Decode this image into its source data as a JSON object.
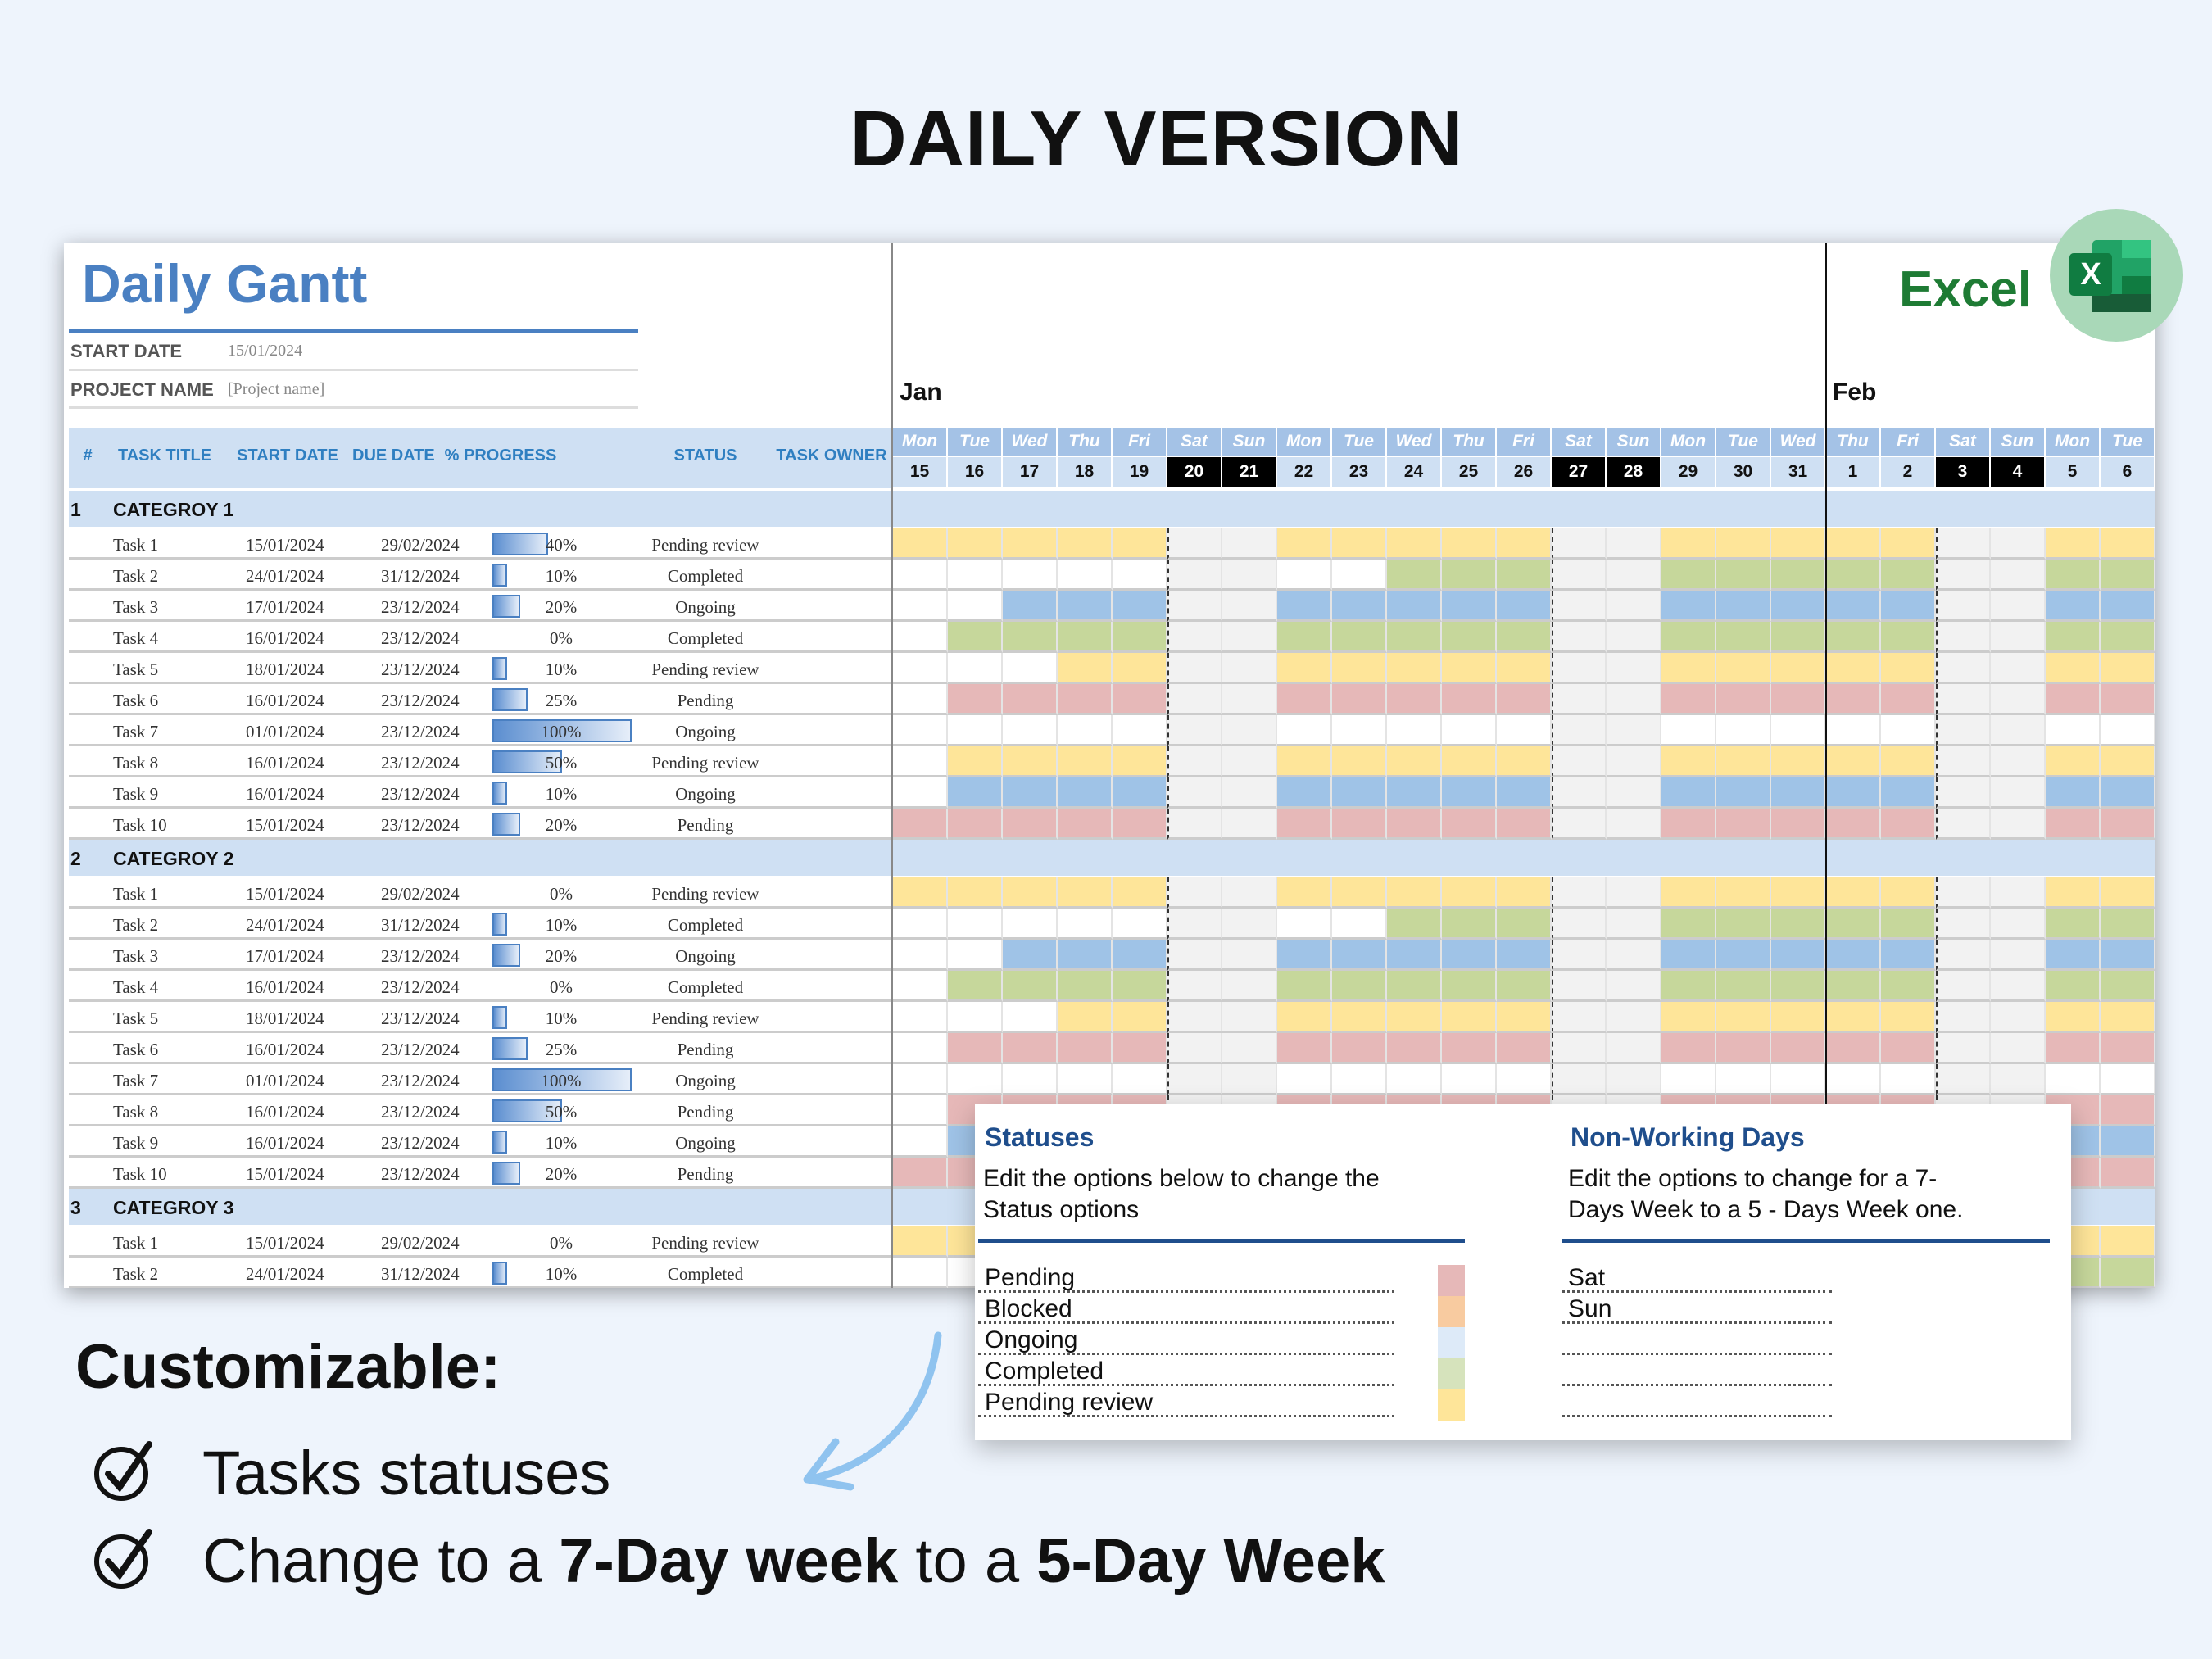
{
  "heading": "DAILY VERSION",
  "excel_label": "Excel",
  "excel_icon_letter": "X",
  "sheet": {
    "title": "Daily Gantt",
    "start_date_label": "START DATE",
    "start_date_value": "15/01/2024",
    "project_name_label": "PROJECT NAME",
    "project_name_value": "[Project name]",
    "columns": [
      "#",
      "TASK TITLE",
      "START DATE",
      "DUE DATE",
      "% PROGRESS",
      "STATUS",
      "TASK OWNER"
    ],
    "months": [
      {
        "label": "Jan",
        "first_day_index": 0
      },
      {
        "label": "Feb",
        "first_day_index": 17
      }
    ],
    "day_names": [
      "Mon",
      "Tue",
      "Wed",
      "Thu",
      "Fri",
      "Sat",
      "Sun",
      "Mon",
      "Tue",
      "Wed",
      "Thu",
      "Fri",
      "Sat",
      "Sun",
      "Mon",
      "Tue",
      "Wed",
      "Thu",
      "Fri",
      "Sat",
      "Sun",
      "Mon",
      "Tue"
    ],
    "day_numbers": [
      "15",
      "16",
      "17",
      "18",
      "19",
      "20",
      "21",
      "22",
      "23",
      "24",
      "25",
      "26",
      "27",
      "28",
      "29",
      "30",
      "31",
      "1",
      "2",
      "3",
      "4",
      "5",
      "6"
    ],
    "categories": [
      {
        "num": "1",
        "name": "CATEGROY 1",
        "tasks": [
          {
            "title": "Task 1",
            "start": "15/01/2024",
            "due": "29/02/2024",
            "progress": 40,
            "progress_label": "40%",
            "status": "Pending review"
          },
          {
            "title": "Task 2",
            "start": "24/01/2024",
            "due": "31/12/2024",
            "progress": 10,
            "progress_label": "10%",
            "status": "Completed"
          },
          {
            "title": "Task 3",
            "start": "17/01/2024",
            "due": "23/12/2024",
            "progress": 20,
            "progress_label": "20%",
            "status": "Ongoing"
          },
          {
            "title": "Task 4",
            "start": "16/01/2024",
            "due": "23/12/2024",
            "progress": 0,
            "progress_label": "0%",
            "status": "Completed"
          },
          {
            "title": "Task 5",
            "start": "18/01/2024",
            "due": "23/12/2024",
            "progress": 10,
            "progress_label": "10%",
            "status": "Pending review"
          },
          {
            "title": "Task 6",
            "start": "16/01/2024",
            "due": "23/12/2024",
            "progress": 25,
            "progress_label": "25%",
            "status": "Pending"
          },
          {
            "title": "Task 7",
            "start": "01/01/2024",
            "due": "23/12/2024",
            "progress": 100,
            "progress_label": "100%",
            "status": "Ongoing"
          },
          {
            "title": "Task 8",
            "start": "16/01/2024",
            "due": "23/12/2024",
            "progress": 50,
            "progress_label": "50%",
            "status": "Pending review"
          },
          {
            "title": "Task 9",
            "start": "16/01/2024",
            "due": "23/12/2024",
            "progress": 10,
            "progress_label": "10%",
            "status": "Ongoing"
          },
          {
            "title": "Task 10",
            "start": "15/01/2024",
            "due": "23/12/2024",
            "progress": 20,
            "progress_label": "20%",
            "status": "Pending"
          }
        ]
      },
      {
        "num": "2",
        "name": "CATEGROY 2",
        "tasks": [
          {
            "title": "Task 1",
            "start": "15/01/2024",
            "due": "29/02/2024",
            "progress": 0,
            "progress_label": "0%",
            "status": "Pending review"
          },
          {
            "title": "Task 2",
            "start": "24/01/2024",
            "due": "31/12/2024",
            "progress": 10,
            "progress_label": "10%",
            "status": "Completed"
          },
          {
            "title": "Task 3",
            "start": "17/01/2024",
            "due": "23/12/2024",
            "progress": 20,
            "progress_label": "20%",
            "status": "Ongoing"
          },
          {
            "title": "Task 4",
            "start": "16/01/2024",
            "due": "23/12/2024",
            "progress": 0,
            "progress_label": "0%",
            "status": "Completed"
          },
          {
            "title": "Task 5",
            "start": "18/01/2024",
            "due": "23/12/2024",
            "progress": 10,
            "progress_label": "10%",
            "status": "Pending review"
          },
          {
            "title": "Task 6",
            "start": "16/01/2024",
            "due": "23/12/2024",
            "progress": 25,
            "progress_label": "25%",
            "status": "Pending"
          },
          {
            "title": "Task 7",
            "start": "01/01/2024",
            "due": "23/12/2024",
            "progress": 100,
            "progress_label": "100%",
            "status": "Ongoing"
          },
          {
            "title": "Task 8",
            "start": "16/01/2024",
            "due": "23/12/2024",
            "progress": 50,
            "progress_label": "50%",
            "status": "Pending"
          },
          {
            "title": "Task 9",
            "start": "16/01/2024",
            "due": "23/12/2024",
            "progress": 10,
            "progress_label": "10%",
            "status": "Ongoing"
          },
          {
            "title": "Task 10",
            "start": "15/01/2024",
            "due": "23/12/2024",
            "progress": 20,
            "progress_label": "20%",
            "status": "Pending"
          }
        ]
      },
      {
        "num": "3",
        "name": "CATEGROY 3",
        "tasks": [
          {
            "title": "Task 1",
            "start": "15/01/2024",
            "due": "29/02/2024",
            "progress": 0,
            "progress_label": "0%",
            "status": "Pending review"
          },
          {
            "title": "Task 2",
            "start": "24/01/2024",
            "due": "31/12/2024",
            "progress": 10,
            "progress_label": "10%",
            "status": "Completed"
          }
        ]
      }
    ]
  },
  "status_colors": {
    "Pending": "#e6b8b8",
    "Blocked": "#f8cba0",
    "Ongoing": "#9fc3e7",
    "Completed": "#c6d79b",
    "Pending review": "#fee599"
  },
  "weekend_color": "#f2f2f2",
  "popup": {
    "statuses_title": "Statuses",
    "statuses_desc_1": "Edit the options below to change the",
    "statuses_desc_2": "Status options",
    "statuses": [
      {
        "label": "Pending",
        "color": "#e6b8b8"
      },
      {
        "label": "Blocked",
        "color": "#f8cba0"
      },
      {
        "label": "Ongoing",
        "color": "#ddeaf8"
      },
      {
        "label": "Completed",
        "color": "#d6e3bc"
      },
      {
        "label": "Pending review",
        "color": "#fee599"
      }
    ],
    "nwd_title": "Non-Working Days",
    "nwd_desc_1": "Edit the options to change for a 7-",
    "nwd_desc_2": "Days Week to a 5 - Days Week one.",
    "nwd_items": [
      "Sat",
      "Sun",
      "",
      "",
      ""
    ]
  },
  "customizable": {
    "title": "Customizable:",
    "item1": "Tasks statuses",
    "item2_a": "Change to a ",
    "item2_b": "7-Day week",
    "item2_c": " to a ",
    "item2_d": "5-Day Week"
  }
}
